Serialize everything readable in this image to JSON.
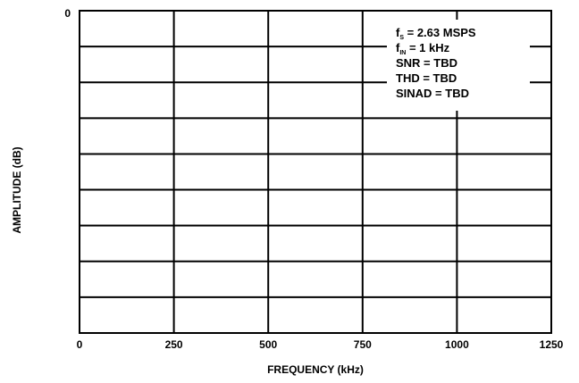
{
  "chart_data": {
    "type": "line",
    "xlabel": "FREQUENCY (kHz)",
    "ylabel": "AMPLITUDE (dB)",
    "xlim": [
      0,
      1250
    ],
    "x_ticks": [
      {
        "value": 0,
        "label": "0"
      },
      {
        "value": 250,
        "label": "250"
      },
      {
        "value": 500,
        "label": "500"
      },
      {
        "value": 750,
        "label": "750"
      },
      {
        "value": 1000,
        "label": "1000"
      },
      {
        "value": 1250,
        "label": "1250"
      }
    ],
    "y_ticks": [
      {
        "label": "0"
      }
    ],
    "y_gridlines": 9,
    "grid": true,
    "series": [],
    "annotations": [
      {
        "main": "f",
        "sub": "S",
        "rest": " = 2.63 MSPS"
      },
      {
        "main": "f",
        "sub": "IN",
        "rest": " = 1 kHz"
      },
      {
        "main": "SNR = TBD",
        "sub": "",
        "rest": ""
      },
      {
        "main": "THD = TBD",
        "sub": "",
        "rest": ""
      },
      {
        "main": "SINAD = TBD",
        "sub": "",
        "rest": ""
      }
    ]
  },
  "colors": {
    "grid": "#000000",
    "background": "#ffffff",
    "text": "#000000"
  }
}
